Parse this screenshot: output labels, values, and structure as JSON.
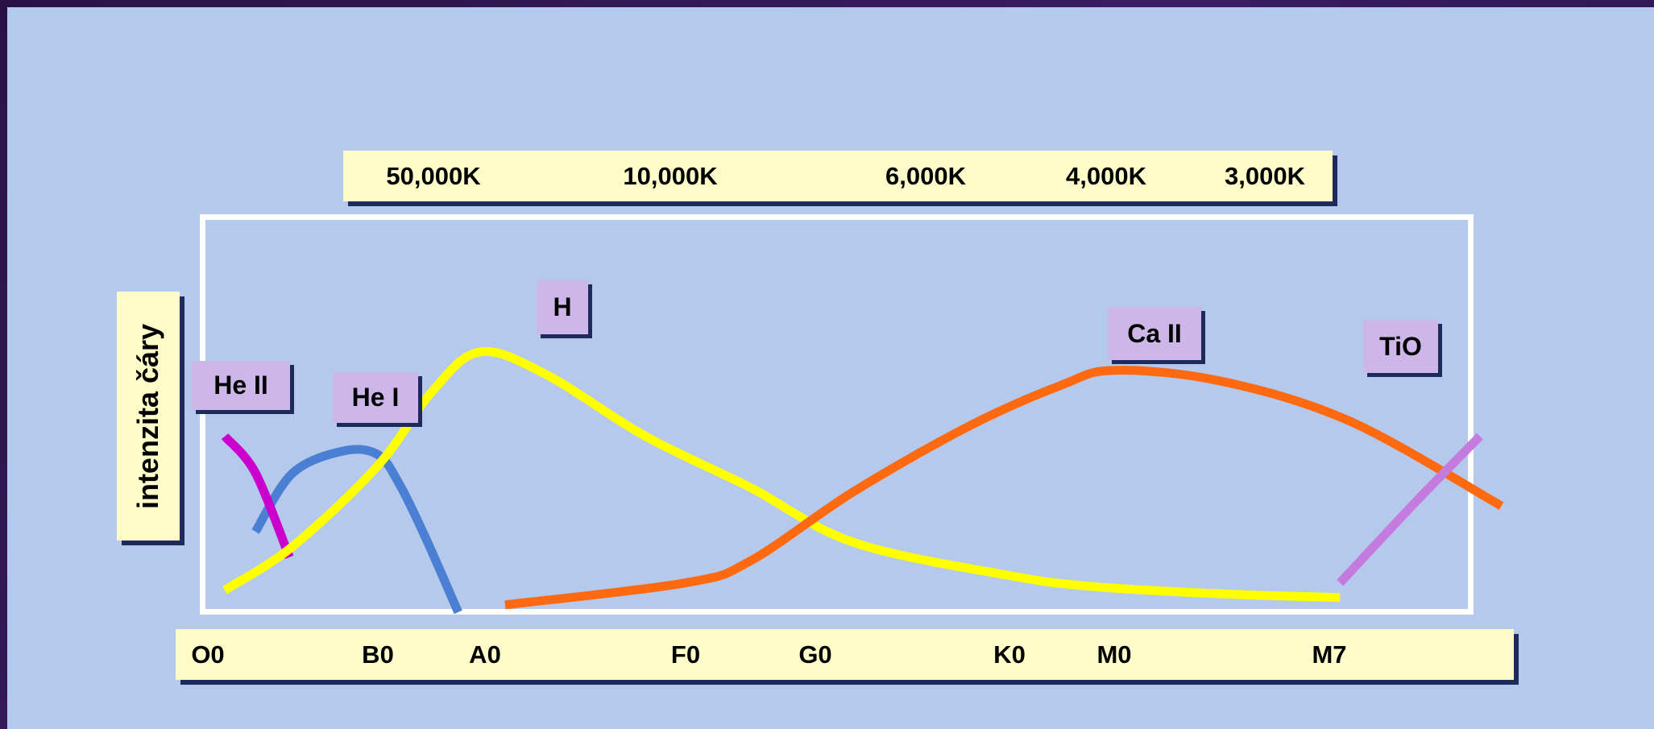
{
  "chart_data": {
    "type": "line",
    "ylabel": "intenzita čáry",
    "x_top_ticks": [
      "50,000K",
      "10,000K",
      "6,000K",
      "4,000K",
      "3,000K"
    ],
    "x_bottom_ticks": [
      "O0",
      "B0",
      "A0",
      "F0",
      "G0",
      "K0",
      "M0",
      "M7"
    ],
    "x_order": [
      "O0",
      "B0",
      "A0",
      "F0",
      "G0",
      "K0",
      "M0",
      "M7"
    ],
    "grid": false,
    "series": [
      {
        "name": "He II",
        "color": "#cc00cc",
        "points": [
          [
            0.1,
            0.48
          ],
          [
            0.28,
            0.38
          ],
          [
            0.48,
            0.15
          ]
        ]
      },
      {
        "name": "He I",
        "color": "#4a7fd4",
        "points": [
          [
            0.28,
            0.22
          ],
          [
            0.5,
            0.38
          ],
          [
            0.8,
            0.44
          ],
          [
            1.0,
            0.43
          ],
          [
            1.2,
            0.35
          ],
          [
            1.45,
            0.2
          ],
          [
            1.75,
            0.0
          ]
        ]
      },
      {
        "name": "H",
        "color": "#ffff00",
        "points": [
          [
            0.1,
            0.06
          ],
          [
            0.5,
            0.18
          ],
          [
            1.0,
            0.4
          ],
          [
            1.5,
            0.6
          ],
          [
            1.95,
            0.71
          ],
          [
            2.3,
            0.65
          ],
          [
            2.8,
            0.48
          ],
          [
            3.5,
            0.34
          ],
          [
            4.2,
            0.19
          ],
          [
            5.0,
            0.1
          ],
          [
            5.8,
            0.07
          ],
          [
            6.5,
            0.05
          ],
          [
            7.05,
            0.04
          ]
        ]
      },
      {
        "name": "Ca II",
        "color": "#ff6a10",
        "points": [
          [
            2.1,
            0.02
          ],
          [
            3.0,
            0.08
          ],
          [
            3.5,
            0.14
          ],
          [
            4.2,
            0.33
          ],
          [
            4.8,
            0.51
          ],
          [
            5.5,
            0.62
          ],
          [
            6.0,
            0.66
          ],
          [
            6.5,
            0.63
          ],
          [
            7.1,
            0.52
          ],
          [
            7.8,
            0.29
          ]
        ]
      },
      {
        "name": "TiO",
        "color": "#c57bdd",
        "points": [
          [
            7.05,
            0.08
          ],
          [
            7.4,
            0.3
          ],
          [
            7.7,
            0.48
          ]
        ]
      }
    ]
  },
  "labels": {
    "he2": "He II",
    "he1": "He I",
    "h": "H",
    "ca2": "Ca II",
    "tio": "TiO"
  },
  "ticks_top": {
    "t0": "50,000K",
    "t1": "10,000K",
    "t2": "6,000K",
    "t3": "4,000K",
    "t4": "3,000K"
  },
  "ticks_bottom": {
    "c0": "O0",
    "c1": "B0",
    "c2": "A0",
    "c3": "F0",
    "c4": "G0",
    "c5": "K0",
    "c6": "M0",
    "c7": "M7"
  },
  "ylabel": "intenzita čáry"
}
